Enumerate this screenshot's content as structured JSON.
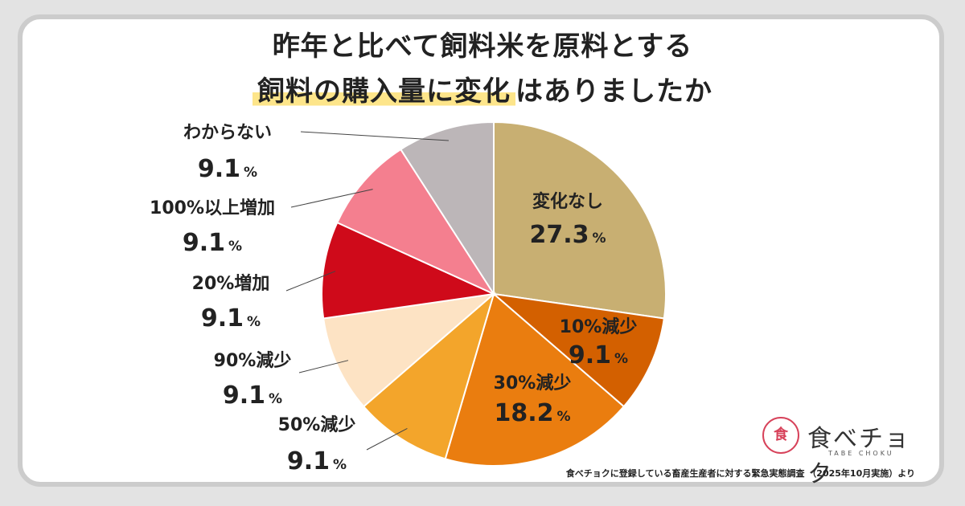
{
  "title_line1": "昨年と比べて飼料米を原料とする",
  "title_line2_highlight": "飼料の購入量に変化",
  "title_line2_rest": "はありましたか",
  "chart_data": {
    "type": "pie",
    "title": "昨年と比べて飼料米を原料とする飼料の購入量に変化はありましたか",
    "slices": [
      {
        "label": "変化なし",
        "value": 27.3,
        "value_text": "27.3",
        "color": "#c8af72"
      },
      {
        "label": "10%減少",
        "value": 9.1,
        "value_text": "9.1",
        "color": "#d36000"
      },
      {
        "label": "30%減少",
        "value": 18.2,
        "value_text": "18.2",
        "color": "#ea7d0f"
      },
      {
        "label": "50%減少",
        "value": 9.1,
        "value_text": "9.1",
        "color": "#f3a52b"
      },
      {
        "label": "90%減少",
        "value": 9.1,
        "value_text": "9.1",
        "color": "#fde3c4"
      },
      {
        "label": "20%増加",
        "value": 9.1,
        "value_text": "9.1",
        "color": "#cf0a1a"
      },
      {
        "label": "100%以上増加",
        "value": 9.1,
        "value_text": "9.1",
        "color": "#f47f8f"
      },
      {
        "label": "わからない",
        "value": 9.1,
        "value_text": "9.1",
        "color": "#bcb6b8"
      }
    ],
    "unit": "%",
    "start_angle": "12 o'clock",
    "direction": "clockwise"
  },
  "logo": {
    "name": "食べチョク",
    "sub": "TABE CHOKU",
    "mark": "食"
  },
  "source": "食べチョクに登録している畜産生産者に対する緊急実態調査 （2025年10月実施）より"
}
